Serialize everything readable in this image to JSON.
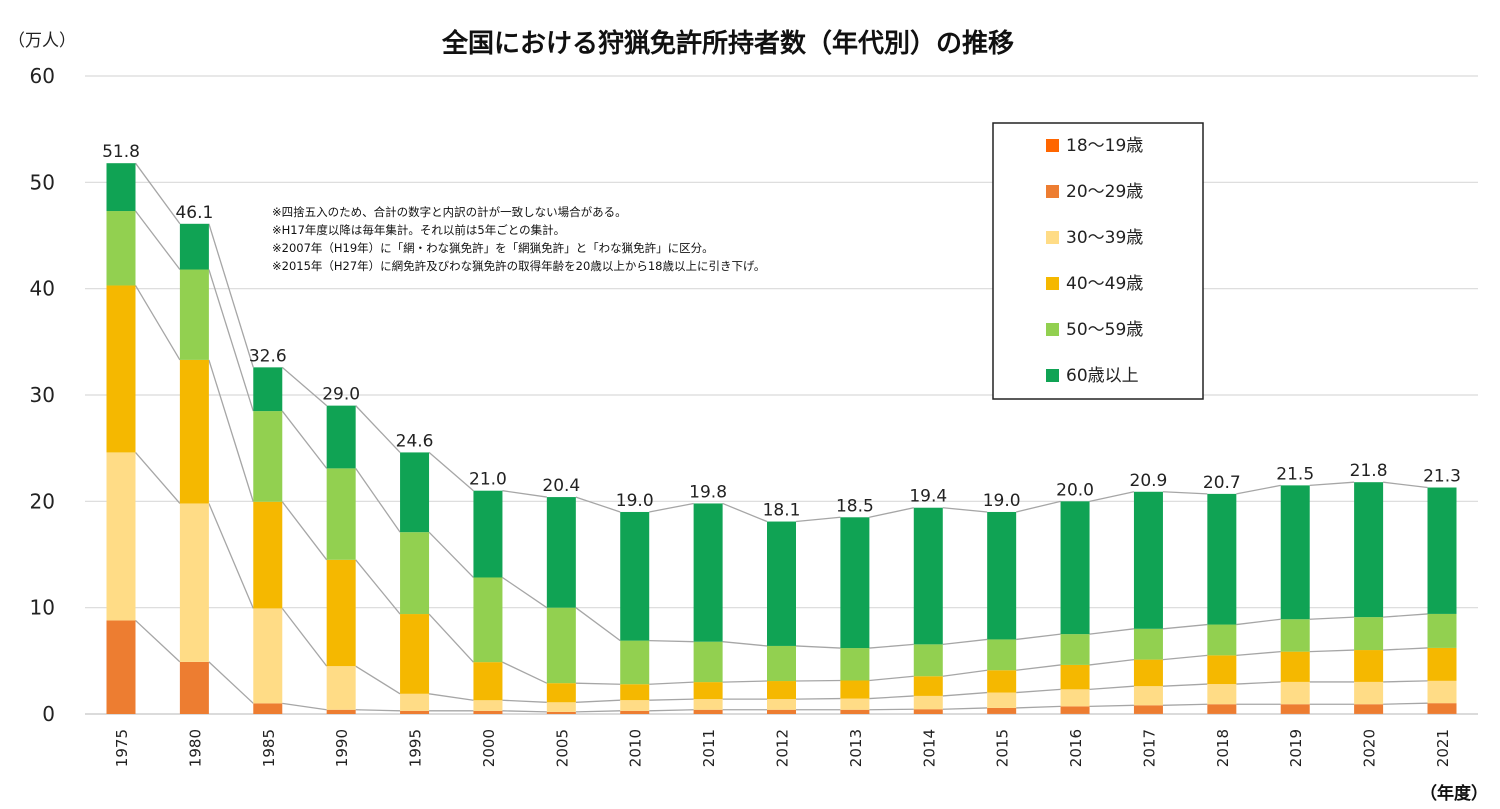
{
  "chart_data": {
    "type": "bar",
    "stacked": true,
    "title": "全国における狩猟免許所持者数（年代別）の推移",
    "ylabel": "（万人）",
    "xlabel": "（年度）",
    "ylim": [
      0,
      60
    ],
    "yticks": [
      0,
      10,
      20,
      30,
      40,
      50,
      60
    ],
    "grid": true,
    "legend_position": "top-right",
    "categories": [
      "1975",
      "1980",
      "1985",
      "1990",
      "1995",
      "2000",
      "2005",
      "2010",
      "2011",
      "2012",
      "2013",
      "2014",
      "2015",
      "2016",
      "2017",
      "2018",
      "2019",
      "2020",
      "2021"
    ],
    "totals": [
      51.8,
      46.1,
      32.6,
      29.0,
      24.6,
      21.0,
      20.4,
      19.0,
      19.8,
      18.1,
      18.5,
      19.4,
      19.0,
      20.0,
      20.9,
      20.7,
      21.5,
      21.8,
      21.3
    ],
    "series": [
      {
        "name": "18〜19歳",
        "color": "#FF6600",
        "values": [
          0,
          0,
          0,
          0,
          0,
          0,
          0,
          0,
          0,
          0,
          0,
          0,
          0.02,
          0.02,
          0.02,
          0.02,
          0.02,
          0.02,
          0.02
        ]
      },
      {
        "name": "20〜29歳",
        "color": "#ED7D31",
        "values": [
          8.8,
          4.9,
          1.0,
          0.4,
          0.3,
          0.3,
          0.2,
          0.3,
          0.4,
          0.4,
          0.4,
          0.45,
          0.55,
          0.7,
          0.8,
          0.9,
          0.9,
          0.9,
          1.0
        ]
      },
      {
        "name": "30〜39歳",
        "color": "#FFDC86",
        "values": [
          15.8,
          14.9,
          8.9,
          4.1,
          1.6,
          1.0,
          0.9,
          1.0,
          1.0,
          1.0,
          1.05,
          1.25,
          1.45,
          1.6,
          1.8,
          1.9,
          2.1,
          2.1,
          2.1
        ]
      },
      {
        "name": "40〜49歳",
        "color": "#F5B800",
        "values": [
          15.7,
          13.5,
          10.0,
          10.0,
          7.5,
          3.6,
          1.8,
          1.5,
          1.6,
          1.7,
          1.7,
          1.85,
          2.1,
          2.3,
          2.5,
          2.7,
          2.85,
          3.0,
          3.1
        ]
      },
      {
        "name": "50〜59歳",
        "color": "#92D050",
        "values": [
          7.0,
          8.5,
          8.5,
          8.6,
          7.7,
          8.0,
          7.1,
          4.1,
          3.8,
          3.3,
          3.05,
          3.0,
          2.9,
          2.9,
          2.9,
          2.9,
          3.05,
          3.1,
          3.2
        ]
      },
      {
        "name": "60歳以上",
        "color": "#10A354",
        "values": [
          4.5,
          4.3,
          4.1,
          5.9,
          7.5,
          8.2,
          10.4,
          12.1,
          13.0,
          11.7,
          12.3,
          12.85,
          12.0,
          12.5,
          12.9,
          12.3,
          12.6,
          12.7,
          11.9
        ]
      }
    ],
    "notes": [
      "※四捨五入のため、合計の数字と内訳の計が一致しない場合がある。",
      "※H17年度以降は毎年集計。それ以前は5年ごとの集計。",
      "※2007年（H19年）に「網・わな猟免許」を「網猟免許」と「わな猟免許」に区分。",
      "※2015年（H27年）に網免許及びわな猟免許の取得年齢を20歳以上から18歳以上に引き下げ。"
    ]
  }
}
